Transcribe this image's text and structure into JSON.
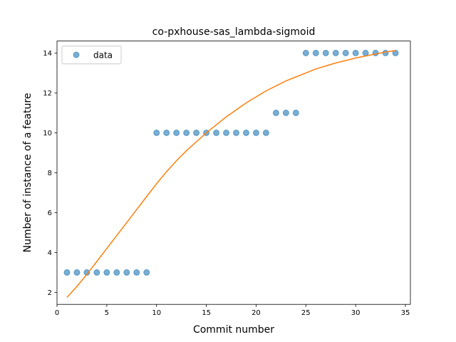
{
  "chart_data": {
    "type": "scatter",
    "title": "co-pxhouse-sas_lambda-sigmoid",
    "xlabel": "Commit number",
    "ylabel": "Number of instance of a feature",
    "xlim": [
      0,
      35.5
    ],
    "ylim": [
      1.4,
      14.6
    ],
    "xticks": [
      0,
      5,
      10,
      15,
      20,
      25,
      30,
      35
    ],
    "yticks": [
      2,
      4,
      6,
      8,
      10,
      12,
      14
    ],
    "legend": {
      "placement": "upper-left",
      "entries": [
        "data"
      ]
    },
    "grid": false,
    "series": [
      {
        "name": "data",
        "kind": "points",
        "color": "#1f77b4",
        "x": [
          1,
          2,
          3,
          4,
          5,
          6,
          7,
          8,
          9,
          10,
          11,
          12,
          13,
          14,
          15,
          16,
          17,
          18,
          19,
          20,
          21,
          22,
          23,
          24,
          25,
          26,
          27,
          28,
          29,
          30,
          31,
          32,
          33,
          34
        ],
        "y": [
          3,
          3,
          3,
          3,
          3,
          3,
          3,
          3,
          3,
          10,
          10,
          10,
          10,
          10,
          10,
          10,
          10,
          10,
          10,
          10,
          10,
          11,
          11,
          11,
          14,
          14,
          14,
          14,
          14,
          14,
          14,
          14,
          14,
          14
        ]
      },
      {
        "kind": "fit-line",
        "color": "#ff7f0e",
        "x": [
          1,
          2,
          3,
          4,
          5,
          6,
          7,
          8,
          9,
          10,
          11,
          12,
          13,
          14,
          15,
          16,
          17,
          18,
          19,
          20,
          21,
          22,
          23,
          24,
          25,
          26,
          27,
          28,
          29,
          30,
          31,
          32,
          33,
          34
        ],
        "y": [
          1.75,
          2.3,
          2.9,
          3.55,
          4.2,
          4.85,
          5.5,
          6.15,
          6.8,
          7.45,
          8.05,
          8.6,
          9.1,
          9.55,
          10.0,
          10.4,
          10.8,
          11.15,
          11.5,
          11.8,
          12.1,
          12.35,
          12.6,
          12.8,
          13.0,
          13.2,
          13.35,
          13.5,
          13.62,
          13.75,
          13.85,
          13.95,
          14.05,
          14.12
        ]
      }
    ]
  }
}
